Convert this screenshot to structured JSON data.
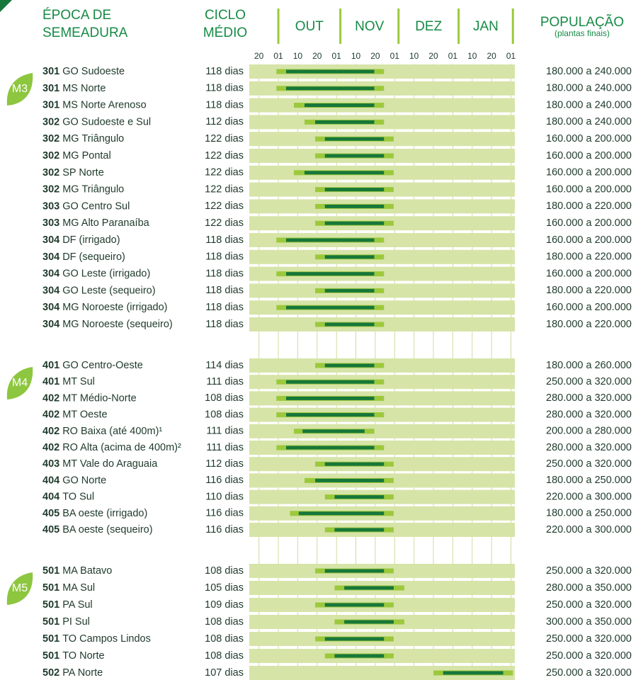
{
  "header": {
    "epoca": [
      "ÉPOCA DE",
      "SEMEADURA"
    ],
    "ciclo": [
      "CICLO",
      "MÉDIO"
    ],
    "months": [
      "OUT",
      "NOV",
      "DEZ",
      "JAN"
    ],
    "populacao": "POPULAÇÃO",
    "populacao_note": "(plantas finais)"
  },
  "axis": {
    "xlim": [
      -0.5,
      13.2
    ],
    "xticks": [
      {
        "value": 0,
        "label": "20"
      },
      {
        "value": 1,
        "label": "01"
      },
      {
        "value": 2,
        "label": "10"
      },
      {
        "value": 3,
        "label": "20"
      },
      {
        "value": 4,
        "label": "01"
      },
      {
        "value": 5,
        "label": "10"
      },
      {
        "value": 6,
        "label": "20"
      },
      {
        "value": 7,
        "label": "01"
      },
      {
        "value": 8,
        "label": "10"
      },
      {
        "value": 9,
        "label": "20"
      },
      {
        "value": 10,
        "label": "01"
      },
      {
        "value": 11,
        "label": "10"
      },
      {
        "value": 12,
        "label": "20"
      },
      {
        "value": 13,
        "label": "01"
      }
    ],
    "month_edges": [
      1,
      4.2,
      7.2,
      10.3,
      13.1
    ],
    "colors": {
      "row": "#d6e4a8",
      "edge": "#9cc93c",
      "core": "#17773a"
    }
  },
  "groups": [
    {
      "label": "M3",
      "rows": [
        {
          "code": "301",
          "region": "GO Sudoeste",
          "cycle": "118 dias",
          "population": "180.000 a 240.000",
          "window": [
            0.9,
            1.4,
            5.95,
            6.45
          ]
        },
        {
          "code": "301",
          "region": "MS Norte",
          "cycle": "118 dias",
          "population": "180.000 a 240.000",
          "window": [
            0.9,
            1.4,
            5.95,
            6.45
          ]
        },
        {
          "code": "301",
          "region": "MS Norte Arenoso",
          "cycle": "118 dias",
          "population": "180.000 a 240.000",
          "window": [
            1.8,
            2.35,
            5.95,
            6.45
          ]
        },
        {
          "code": "302",
          "region": "GO Sudoeste e Sul",
          "cycle": "112 dias",
          "population": "180.000 a 240.000",
          "window": [
            2.35,
            2.9,
            5.95,
            6.45
          ]
        },
        {
          "code": "302",
          "region": "MG Triângulo",
          "cycle": "122 dias",
          "population": "160.000 a 200.000",
          "window": [
            2.9,
            3.4,
            6.45,
            6.95
          ]
        },
        {
          "code": "302",
          "region": "MG Pontal",
          "cycle": "122 dias",
          "population": "160.000 a 200.000",
          "window": [
            2.9,
            3.4,
            6.45,
            6.95
          ]
        },
        {
          "code": "302",
          "region": "SP Norte",
          "cycle": "122 dias",
          "population": "160.000 a 200.000",
          "window": [
            1.8,
            2.35,
            6.45,
            6.95
          ]
        },
        {
          "code": "302",
          "region": "MG Triângulo",
          "cycle": "122 dias",
          "population": "160.000 a 200.000",
          "window": [
            2.9,
            3.4,
            6.45,
            6.95
          ]
        },
        {
          "code": "303",
          "region": "GO Centro Sul",
          "cycle": "122 dias",
          "population": "180.000 a 220.000",
          "window": [
            2.9,
            3.4,
            6.45,
            6.95
          ]
        },
        {
          "code": "303",
          "region": "MG Alto Paranaíba",
          "cycle": "122 dias",
          "population": "160.000 a 200.000",
          "window": [
            2.9,
            3.4,
            6.45,
            6.95
          ]
        },
        {
          "code": "304",
          "region": "DF (irrigado)",
          "cycle": "118 dias",
          "population": "160.000 a 200.000",
          "window": [
            0.9,
            1.4,
            5.95,
            6.45
          ]
        },
        {
          "code": "304",
          "region": "DF (sequeiro)",
          "cycle": "118 dias",
          "population": "180.000 a 220.000",
          "window": [
            2.9,
            3.4,
            5.95,
            6.45
          ]
        },
        {
          "code": "304",
          "region": "GO Leste (irrigado)",
          "cycle": "118 dias",
          "population": "160.000 a 200.000",
          "window": [
            0.9,
            1.4,
            5.95,
            6.45
          ]
        },
        {
          "code": "304",
          "region": "GO Leste (sequeiro)",
          "cycle": "118 dias",
          "population": "180.000 a 220.000",
          "window": [
            2.9,
            3.4,
            5.95,
            6.45
          ]
        },
        {
          "code": "304",
          "region": "MG Noroeste (irrigado)",
          "cycle": "118 dias",
          "population": "160.000 a 200.000",
          "window": [
            0.9,
            1.4,
            5.95,
            6.45
          ]
        },
        {
          "code": "304",
          "region": "MG Noroeste (sequeiro)",
          "cycle": "118 dias",
          "population": "180.000 a 220.000",
          "window": [
            2.9,
            3.4,
            5.95,
            6.45
          ]
        }
      ]
    },
    {
      "label": "M4",
      "rows": [
        {
          "code": "401",
          "region": "GO Centro-Oeste",
          "cycle": "114 dias",
          "population": "180.000 a 260.000",
          "window": [
            2.9,
            3.4,
            5.95,
            6.45
          ]
        },
        {
          "code": "401",
          "region": "MT Sul",
          "cycle": "111 dias",
          "population": "250.000 a 320.000",
          "window": [
            0.9,
            1.4,
            5.95,
            6.45
          ]
        },
        {
          "code": "402",
          "region": "MT Médio-Norte",
          "cycle": "108 dias",
          "population": "280.000 a 320.000",
          "window": [
            0.9,
            1.4,
            5.95,
            6.45
          ]
        },
        {
          "code": "402",
          "region": "MT Oeste",
          "cycle": "108 dias",
          "population": "280.000 a 320.000",
          "window": [
            0.9,
            1.4,
            5.95,
            6.45
          ]
        },
        {
          "code": "402",
          "region": "RO Baixa (até 400m)¹",
          "cycle": "111 dias",
          "population": "200.000 a 280.000",
          "window": [
            1.8,
            2.25,
            5.45,
            5.95
          ]
        },
        {
          "code": "402",
          "region": "RO Alta (acima de 400m)²",
          "cycle": "111 dias",
          "population": "280.000 a 320.000",
          "window": [
            0.9,
            1.4,
            5.95,
            6.45
          ]
        },
        {
          "code": "403",
          "region": "MT Vale do Araguaia",
          "cycle": "112 dias",
          "population": "250.000 a 320.000",
          "window": [
            2.9,
            3.4,
            6.45,
            6.95
          ]
        },
        {
          "code": "404",
          "region": "GO Norte",
          "cycle": "116 dias",
          "population": "180.000 a 250.000",
          "window": [
            2.35,
            2.9,
            6.45,
            6.95
          ]
        },
        {
          "code": "404",
          "region": "TO Sul",
          "cycle": "110 dias",
          "population": "220.000 a 300.000",
          "window": [
            3.4,
            3.9,
            6.45,
            6.95
          ]
        },
        {
          "code": "405",
          "region": "BA oeste (irrigado)",
          "cycle": "116 dias",
          "population": "180.000 a 250.000",
          "window": [
            1.6,
            2.05,
            6.45,
            6.95
          ]
        },
        {
          "code": "405",
          "region": "BA oeste (sequeiro)",
          "cycle": "116 dias",
          "population": "220.000 a 300.000",
          "window": [
            3.4,
            3.9,
            6.45,
            6.95
          ]
        }
      ]
    },
    {
      "label": "M5",
      "rows": [
        {
          "code": "501",
          "region": "MA Batavo",
          "cycle": "108 dias",
          "population": "250.000 a 320.000",
          "window": [
            2.9,
            3.4,
            6.45,
            6.95
          ]
        },
        {
          "code": "501",
          "region": "MA Sul",
          "cycle": "105 dias",
          "population": "280.000 a 350.000",
          "window": [
            3.9,
            4.4,
            6.95,
            7.5
          ]
        },
        {
          "code": "501",
          "region": "PA Sul",
          "cycle": "109 dias",
          "population": "250.000 a 320.000",
          "window": [
            2.9,
            3.4,
            6.45,
            6.95
          ]
        },
        {
          "code": "501",
          "region": "PI Sul",
          "cycle": "108 dias",
          "population": "300.000 a 350.000",
          "window": [
            3.9,
            4.4,
            6.95,
            7.5
          ]
        },
        {
          "code": "501",
          "region": "TO Campos Lindos",
          "cycle": "108 dias",
          "population": "250.000 a 320.000",
          "window": [
            2.9,
            3.4,
            6.45,
            6.95
          ]
        },
        {
          "code": "501",
          "region": "TO Norte",
          "cycle": "108 dias",
          "population": "250.000 a 320.000",
          "window": [
            3.4,
            3.9,
            6.45,
            6.95
          ]
        },
        {
          "code": "502",
          "region": "PA Norte",
          "cycle": "107 dias",
          "population": "250.000 a 320.000",
          "window": [
            9,
            9.5,
            12.6,
            13.1
          ]
        }
      ]
    }
  ]
}
